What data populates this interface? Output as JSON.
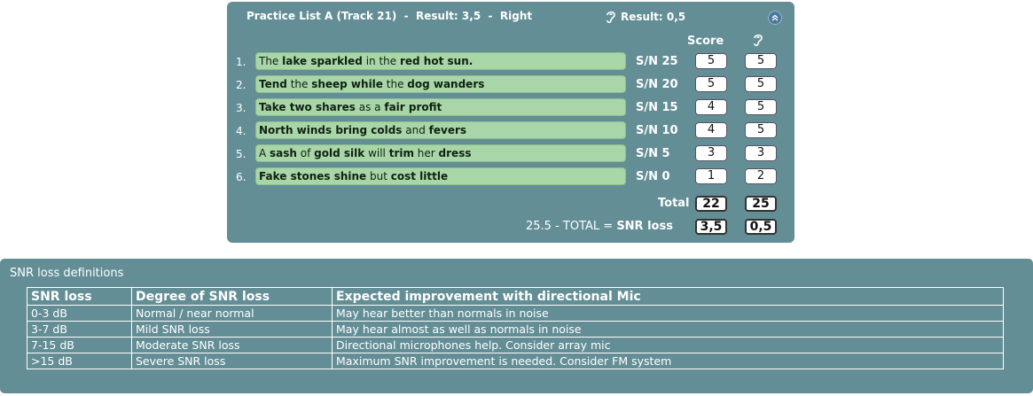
{
  "panel": {
    "title_list": "Practice List A (Track 21)",
    "title_sep1": "  -  ",
    "title_result": "Result: 3,5",
    "title_sep2": "  -  ",
    "title_side": "Right",
    "ear_result": "Result: 0,5",
    "score_header": "Score",
    "rows": [
      {
        "num": "1.",
        "parts": [
          [
            "The ",
            false
          ],
          [
            "lake sparkled",
            true
          ],
          [
            " in the ",
            false
          ],
          [
            "red hot sun.",
            true
          ]
        ],
        "sn": "S/N 25",
        "score": "5",
        "ear_score": "5"
      },
      {
        "num": "2.",
        "parts": [
          [
            "Tend",
            true
          ],
          [
            " the ",
            false
          ],
          [
            "sheep while",
            true
          ],
          [
            " the ",
            false
          ],
          [
            "dog wanders",
            true
          ]
        ],
        "sn": "S/N 20",
        "score": "5",
        "ear_score": "5"
      },
      {
        "num": "3.",
        "parts": [
          [
            "Take two shares",
            true
          ],
          [
            " as a ",
            false
          ],
          [
            "fair profit",
            true
          ]
        ],
        "sn": "S/N 15",
        "score": "4",
        "ear_score": "5"
      },
      {
        "num": "4.",
        "parts": [
          [
            "North winds bring colds",
            true
          ],
          [
            " and ",
            false
          ],
          [
            "fevers",
            true
          ]
        ],
        "sn": "S/N 10",
        "score": "4",
        "ear_score": "5"
      },
      {
        "num": "5.",
        "parts": [
          [
            "A ",
            false
          ],
          [
            "sash",
            true
          ],
          [
            " of ",
            false
          ],
          [
            "gold silk",
            true
          ],
          [
            " will ",
            false
          ],
          [
            "trim",
            true
          ],
          [
            " her ",
            false
          ],
          [
            "dress",
            true
          ]
        ],
        "sn": "S/N 5",
        "score": "3",
        "ear_score": "3"
      },
      {
        "num": "6.",
        "parts": [
          [
            "Fake stones shine",
            true
          ],
          [
            " but ",
            false
          ],
          [
            "cost little",
            true
          ]
        ],
        "sn": "S/N 0",
        "score": "1",
        "ear_score": "2"
      }
    ],
    "total_label": "Total",
    "total_score": "22",
    "total_ear": "25",
    "snr_formula": "25.5 - TOTAL = ",
    "snr_label": "SNR loss",
    "snr_score": "3,5",
    "snr_ear": "0,5",
    "icons": {
      "ear": "ear-icon",
      "collapse": "chevron-double-up-icon"
    }
  },
  "definitions": {
    "title": "SNR loss definitions",
    "headers": [
      "SNR loss",
      "Degree of SNR loss",
      "Expected improvement with directional Mic"
    ],
    "rows": [
      [
        "0-3 dB",
        "Normal / near normal",
        "May hear better than normals in noise"
      ],
      [
        "3-7 dB",
        "Mild SNR loss",
        "May hear almost as well as normals in noise"
      ],
      [
        "7-15 dB",
        "Moderate SNR loss",
        "Directional microphones help. Consider array mic"
      ],
      [
        ">15 dB",
        "Severe SNR loss",
        "Maximum SNR improvement is needed. Consider FM system"
      ]
    ]
  },
  "colors": {
    "panel": "#648e96",
    "sentence_bg": "#a8d6a8",
    "text": "#ffffff"
  }
}
